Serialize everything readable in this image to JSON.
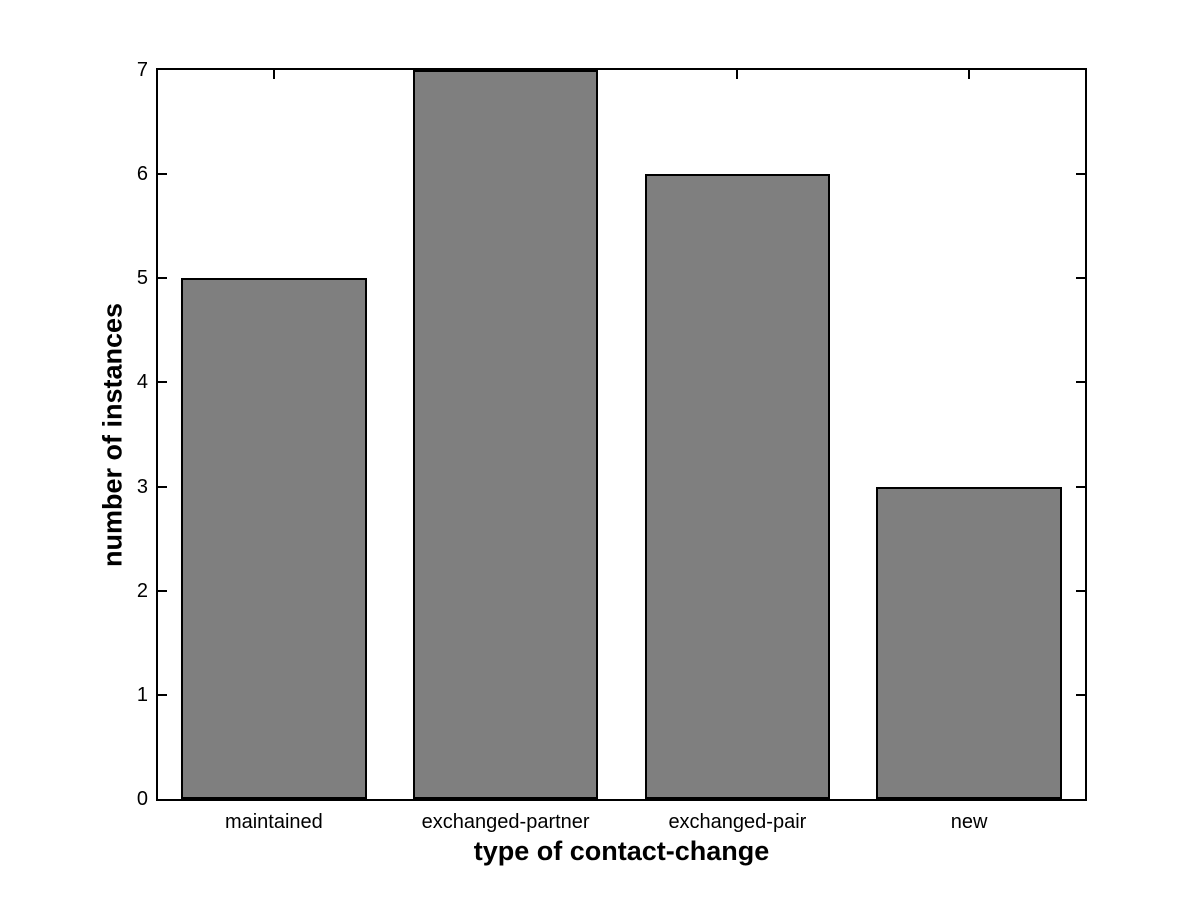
{
  "chart_data": {
    "type": "bar",
    "categories": [
      "maintained",
      "exchanged-partner",
      "exchanged-pair",
      "new"
    ],
    "values": [
      5,
      7,
      6,
      3
    ],
    "title": "",
    "xlabel": "type of contact-change",
    "ylabel": "number of instances",
    "ylim": [
      0,
      7
    ],
    "yticks": [
      0,
      1,
      2,
      3,
      4,
      5,
      6,
      7
    ],
    "bar_width_fraction": 0.8,
    "grid": false,
    "legend": null,
    "colors": {
      "bar_fill": "#7f7f7f",
      "bar_edge": "#000000",
      "axis": "#000000",
      "text": "#000000",
      "background": "#ffffff"
    }
  }
}
